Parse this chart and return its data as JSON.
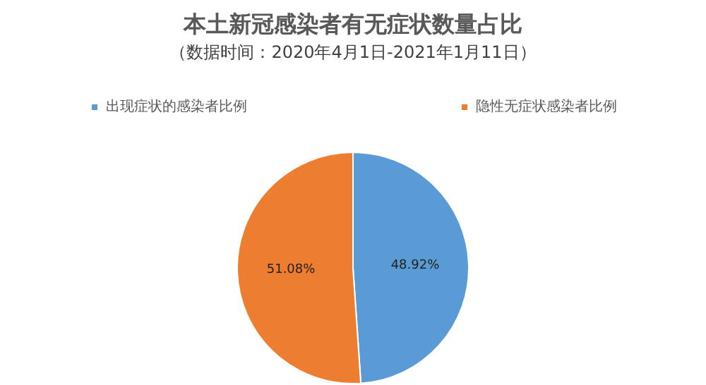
{
  "chart_data": {
    "type": "pie",
    "title": "本土新冠感染者有无症状数量占比",
    "subtitle": "（数据时间：2020年4月1日-2021年1月11日）",
    "categories": [
      "出现症状的感染者比例",
      "隐性无症状感染者比例"
    ],
    "values": [
      48.92,
      51.08
    ],
    "colors": [
      "#5b9bd5",
      "#ed7d31"
    ],
    "value_labels": [
      "48.92%",
      "51.08%"
    ],
    "legend": "top"
  }
}
